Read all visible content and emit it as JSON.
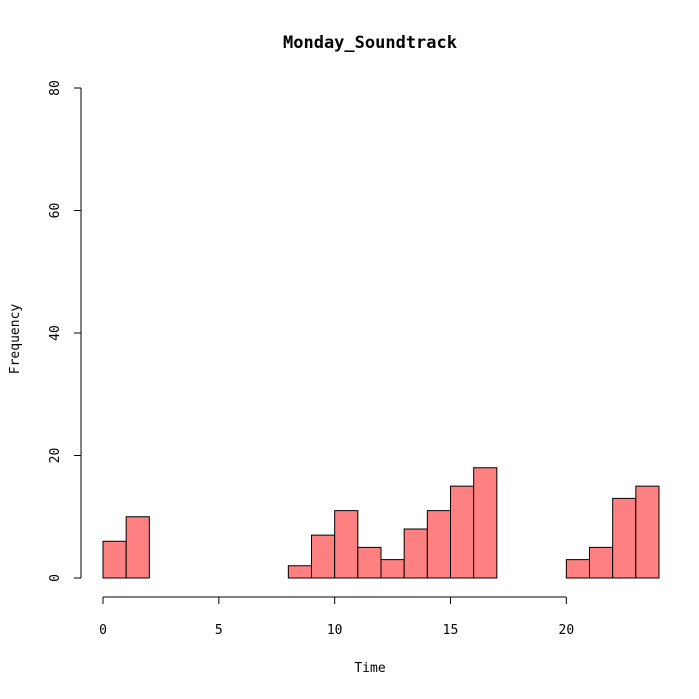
{
  "chart_data": {
    "type": "bar",
    "title": "Monday_Soundtrack",
    "xlabel": "Time",
    "ylabel": "Frequency",
    "bin_edges": [
      0,
      1,
      2,
      3,
      4,
      5,
      6,
      7,
      8,
      9,
      10,
      11,
      12,
      13,
      14,
      15,
      16,
      17,
      18,
      19,
      20,
      21,
      22,
      23,
      24
    ],
    "values": [
      6,
      10,
      0,
      0,
      0,
      0,
      0,
      0,
      2,
      7,
      11,
      5,
      3,
      8,
      11,
      15,
      18,
      0,
      0,
      0,
      3,
      5,
      13,
      15
    ],
    "xlim": [
      0,
      24
    ],
    "ylim": [
      0,
      80
    ],
    "x_ticks": [
      0,
      5,
      10,
      15,
      20
    ],
    "y_ticks": [
      0,
      20,
      40,
      60,
      80
    ],
    "bar_color": "#FF8080",
    "grid": false
  }
}
